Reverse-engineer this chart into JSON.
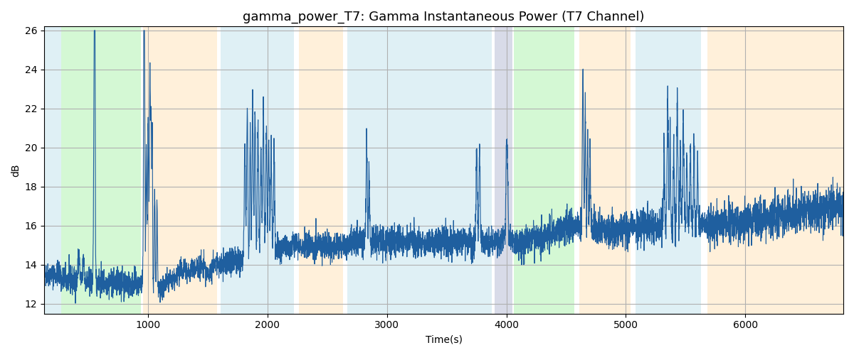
{
  "title": "gamma_power_T7: Gamma Instantaneous Power (T7 Channel)",
  "xlabel": "Time(s)",
  "ylabel": "dB",
  "line_color": "#1f5f9f",
  "line_width": 0.8,
  "ylim": [
    11.5,
    26.2
  ],
  "xlim": [
    130,
    6820
  ],
  "bg_color": "white",
  "grid_color": "#b0b0b0",
  "fig_width": 12.0,
  "fig_height": 5.0,
  "title_fontsize": 13,
  "regions": [
    {
      "xmin": 130,
      "xmax": 270,
      "color": "#add8e6",
      "alpha": 0.38
    },
    {
      "xmin": 270,
      "xmax": 940,
      "color": "#90ee90",
      "alpha": 0.38
    },
    {
      "xmin": 960,
      "xmax": 1580,
      "color": "#ffdead",
      "alpha": 0.45
    },
    {
      "xmin": 1610,
      "xmax": 2220,
      "color": "#add8e6",
      "alpha": 0.38
    },
    {
      "xmin": 2260,
      "xmax": 2630,
      "color": "#ffdead",
      "alpha": 0.45
    },
    {
      "xmin": 2670,
      "xmax": 3880,
      "color": "#add8e6",
      "alpha": 0.38
    },
    {
      "xmin": 3900,
      "xmax": 4050,
      "color": "#aab0cc",
      "alpha": 0.45
    },
    {
      "xmin": 4060,
      "xmax": 4570,
      "color": "#90ee90",
      "alpha": 0.38
    },
    {
      "xmin": 4610,
      "xmax": 5040,
      "color": "#ffdead",
      "alpha": 0.45
    },
    {
      "xmin": 5080,
      "xmax": 5630,
      "color": "#add8e6",
      "alpha": 0.38
    },
    {
      "xmin": 5680,
      "xmax": 6820,
      "color": "#ffdead",
      "alpha": 0.45
    }
  ]
}
